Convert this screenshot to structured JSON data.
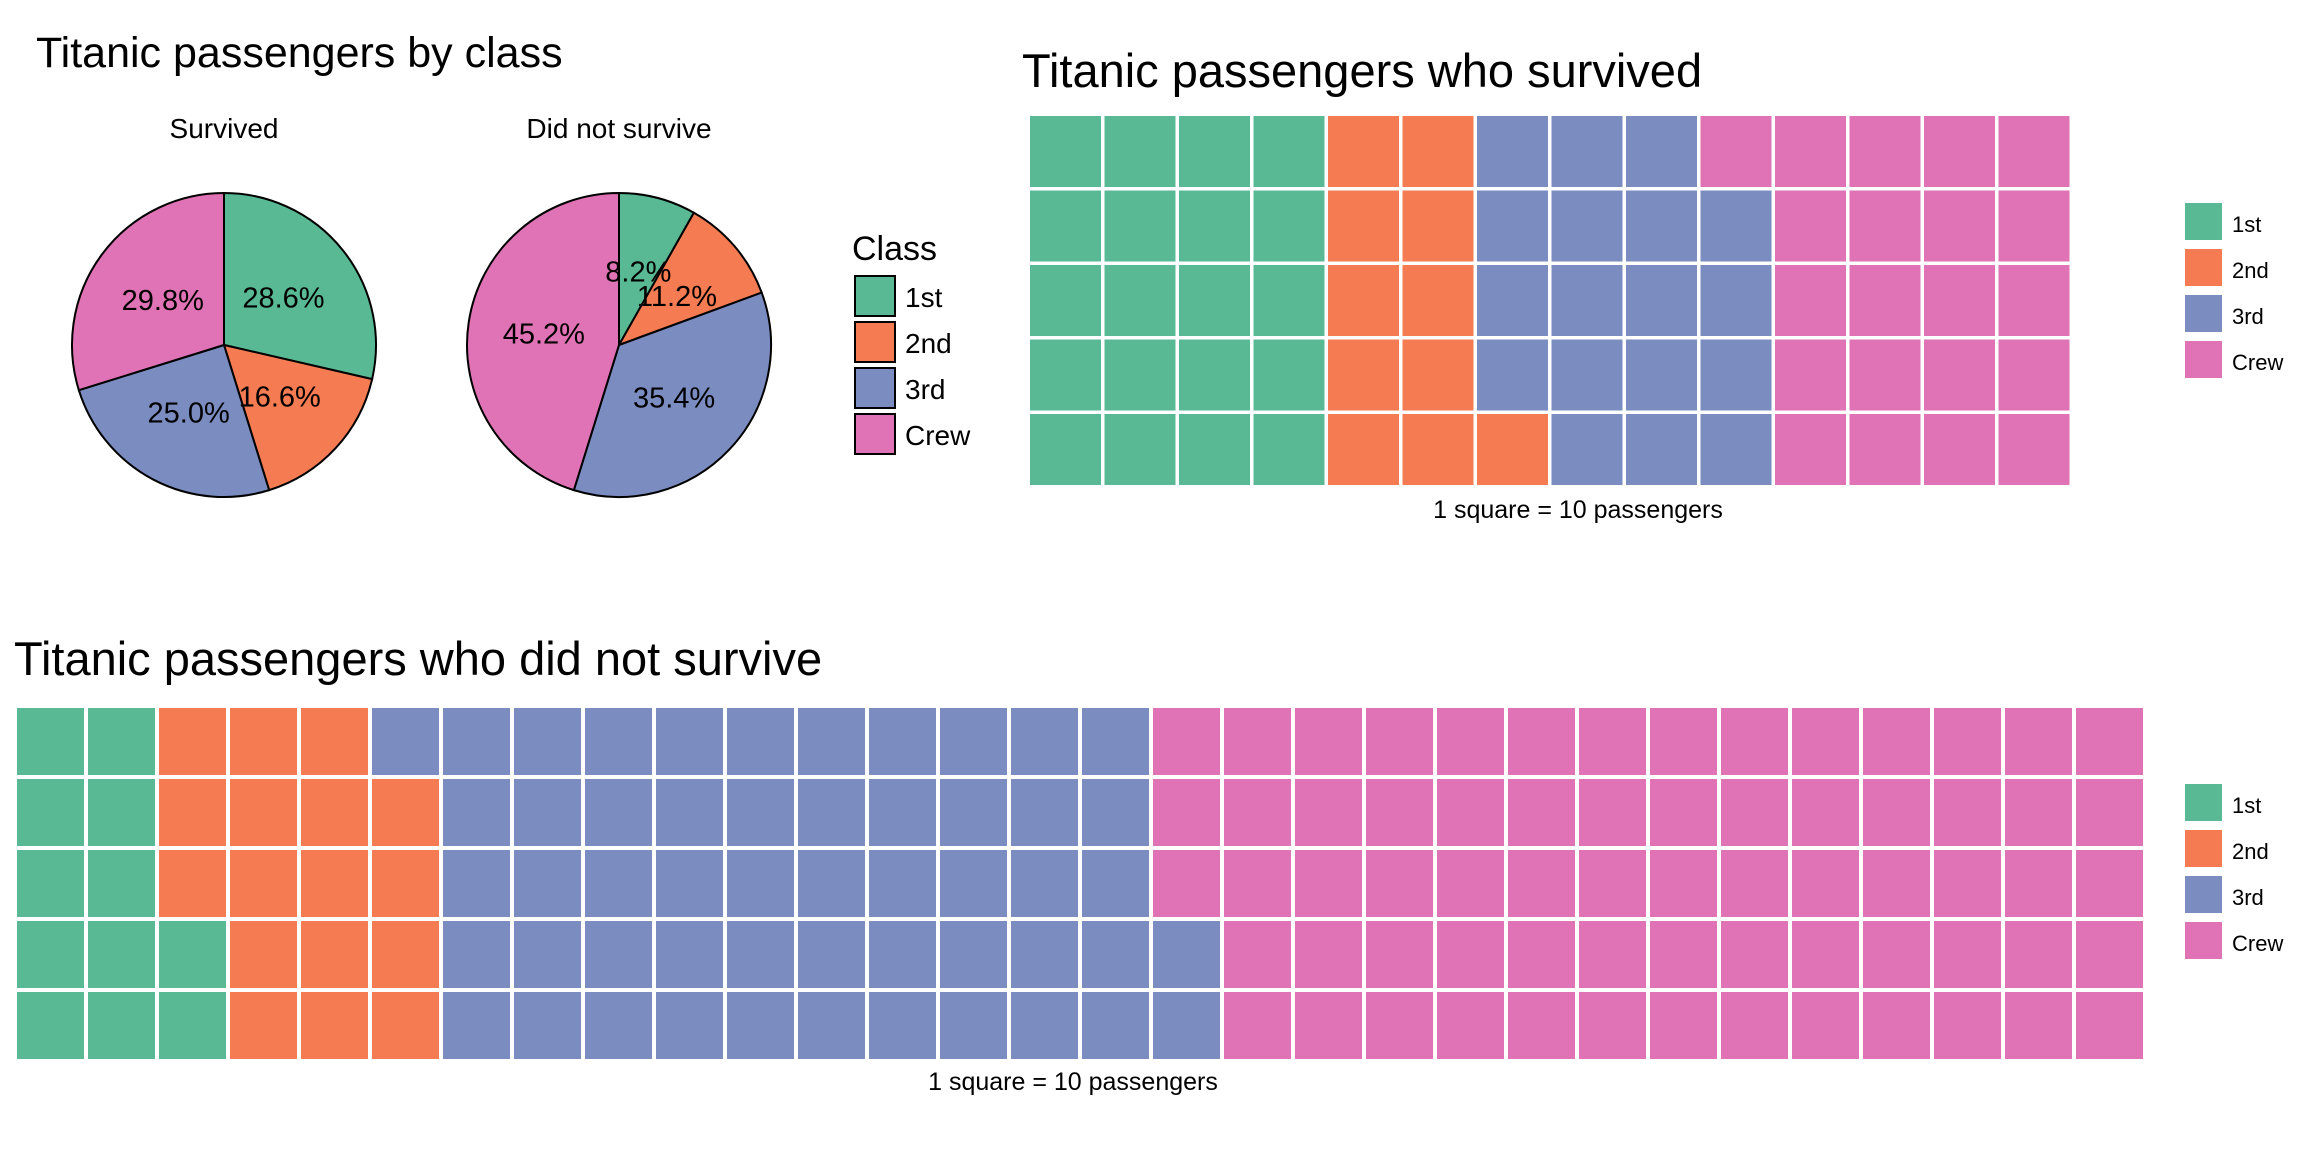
{
  "colors": {
    "1st": "#58b994",
    "2nd": "#f57c52",
    "3rd": "#7b8dc0",
    "Crew": "#df73b6"
  },
  "chart_data": [
    {
      "type": "pie",
      "title": "Titanic passengers by class",
      "legend_title": "Class",
      "legend_position": "right",
      "categories": [
        "1st",
        "2nd",
        "3rd",
        "Crew"
      ],
      "panels": [
        {
          "name": "Survived",
          "values": [
            28.6,
            16.6,
            25.0,
            29.8
          ],
          "labels": [
            "28.6%",
            "16.6%",
            "25.0%",
            "29.8%"
          ]
        },
        {
          "name": "Did not survive",
          "values": [
            8.2,
            11.2,
            35.4,
            45.2
          ],
          "labels": [
            "8.2%",
            "11.2%",
            "35.4%",
            "45.2%"
          ]
        }
      ]
    },
    {
      "type": "waffle",
      "title": "Titanic passengers who survived",
      "caption": "1 square = 10 passengers",
      "rows": 5,
      "legend_position": "right",
      "categories": [
        "1st",
        "2nd",
        "3rd",
        "Crew"
      ],
      "values": [
        20,
        11,
        18,
        21
      ]
    },
    {
      "type": "waffle",
      "title": "Titanic passengers who did not survive",
      "caption": "1 square = 10 passengers",
      "rows": 5,
      "legend_position": "right",
      "categories": [
        "1st",
        "2nd",
        "3rd",
        "Crew"
      ],
      "values": [
        12,
        17,
        53,
        68
      ]
    }
  ]
}
